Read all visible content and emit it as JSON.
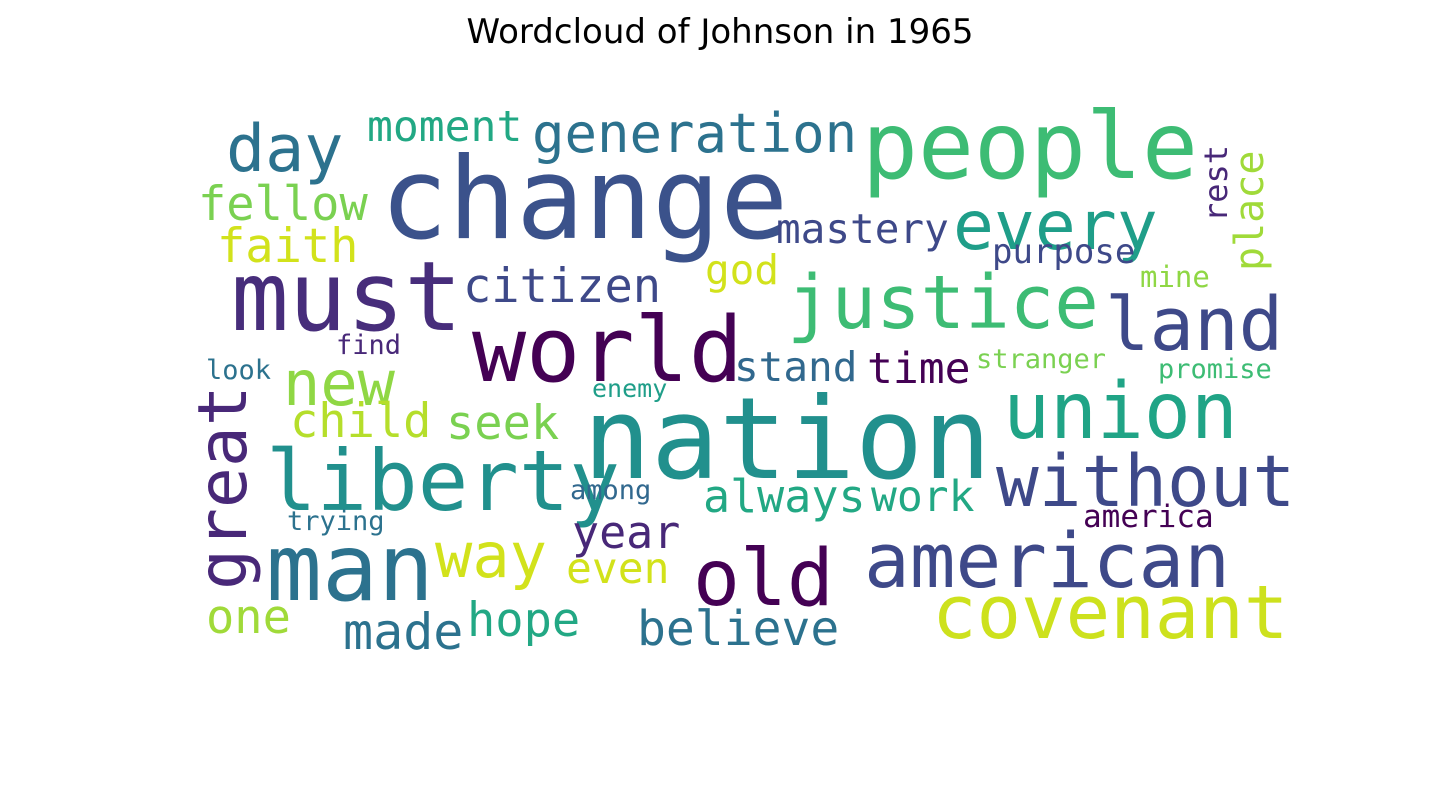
{
  "chart_data": {
    "type": "wordcloud",
    "title": "Wordcloud of Johnson in 1965",
    "colormap": "viridis",
    "words": [
      {
        "text": "change",
        "weight": 1.0,
        "color": "#3b528b"
      },
      {
        "text": "nation",
        "weight": 1.0,
        "color": "#21908d"
      },
      {
        "text": "must",
        "weight": 0.85,
        "color": "#472d7b"
      },
      {
        "text": "world",
        "weight": 0.8,
        "color": "#440154"
      },
      {
        "text": "man",
        "weight": 0.82,
        "color": "#2c728e"
      },
      {
        "text": "people",
        "weight": 0.82,
        "color": "#3dbc74"
      },
      {
        "text": "liberty",
        "weight": 0.74,
        "color": "#21908d"
      },
      {
        "text": "union",
        "weight": 0.7,
        "color": "#20a486"
      },
      {
        "text": "old",
        "weight": 0.7,
        "color": "#440154"
      },
      {
        "text": "american",
        "weight": 0.68,
        "color": "#3e4989"
      },
      {
        "text": "justice",
        "weight": 0.66,
        "color": "#3dbc74"
      },
      {
        "text": "land",
        "weight": 0.66,
        "color": "#3e4989"
      },
      {
        "text": "covenant",
        "weight": 0.66,
        "color": "#cde11d"
      },
      {
        "text": "without",
        "weight": 0.64,
        "color": "#3e4989"
      },
      {
        "text": "every",
        "weight": 0.62,
        "color": "#1f9e89"
      },
      {
        "text": "great",
        "weight": 0.6,
        "color": "#482878"
      },
      {
        "text": "day",
        "weight": 0.58,
        "color": "#2c728e"
      },
      {
        "text": "way",
        "weight": 0.56,
        "color": "#d2e21b"
      },
      {
        "text": "new",
        "weight": 0.56,
        "color": "#8fd744"
      },
      {
        "text": "generation",
        "weight": 0.5,
        "color": "#2c728e"
      },
      {
        "text": "made",
        "weight": 0.46,
        "color": "#2c728e"
      },
      {
        "text": "believe",
        "weight": 0.44,
        "color": "#2c728e"
      },
      {
        "text": "citizen",
        "weight": 0.42,
        "color": "#3e4989"
      },
      {
        "text": "fellow",
        "weight": 0.42,
        "color": "#7ad151"
      },
      {
        "text": "faith",
        "weight": 0.42,
        "color": "#d2e21b"
      },
      {
        "text": "seek",
        "weight": 0.42,
        "color": "#7ad151"
      },
      {
        "text": "child",
        "weight": 0.42,
        "color": "#b5de2b"
      },
      {
        "text": "hope",
        "weight": 0.42,
        "color": "#22a884"
      },
      {
        "text": "one",
        "weight": 0.42,
        "color": "#a0da39"
      },
      {
        "text": "year",
        "weight": 0.4,
        "color": "#482878"
      },
      {
        "text": "always",
        "weight": 0.4,
        "color": "#22a884"
      },
      {
        "text": "work",
        "weight": 0.38,
        "color": "#22a884"
      },
      {
        "text": "even",
        "weight": 0.38,
        "color": "#d2e21b"
      },
      {
        "text": "moment",
        "weight": 0.38,
        "color": "#22a884"
      },
      {
        "text": "time",
        "weight": 0.38,
        "color": "#440154"
      },
      {
        "text": "stand",
        "weight": 0.36,
        "color": "#31688e"
      },
      {
        "text": "mastery",
        "weight": 0.36,
        "color": "#3e4989"
      },
      {
        "text": "god",
        "weight": 0.36,
        "color": "#d2e21b"
      },
      {
        "text": "place",
        "weight": 0.36,
        "color": "#a0da39"
      },
      {
        "text": "purpose",
        "weight": 0.3,
        "color": "#3e4989"
      },
      {
        "text": "rest",
        "weight": 0.28,
        "color": "#482878"
      },
      {
        "text": "america",
        "weight": 0.28,
        "color": "#440154"
      },
      {
        "text": "mine",
        "weight": 0.26,
        "color": "#8fd744"
      },
      {
        "text": "stranger",
        "weight": 0.24,
        "color": "#7ad151"
      },
      {
        "text": "promise",
        "weight": 0.24,
        "color": "#3dbc74"
      },
      {
        "text": "among",
        "weight": 0.24,
        "color": "#31688e"
      },
      {
        "text": "trying",
        "weight": 0.24,
        "color": "#2c728e"
      },
      {
        "text": "find",
        "weight": 0.24,
        "color": "#482878"
      },
      {
        "text": "look",
        "weight": 0.24,
        "color": "#2c728e"
      },
      {
        "text": "enemy",
        "weight": 0.22,
        "color": "#1f9e89"
      }
    ]
  }
}
